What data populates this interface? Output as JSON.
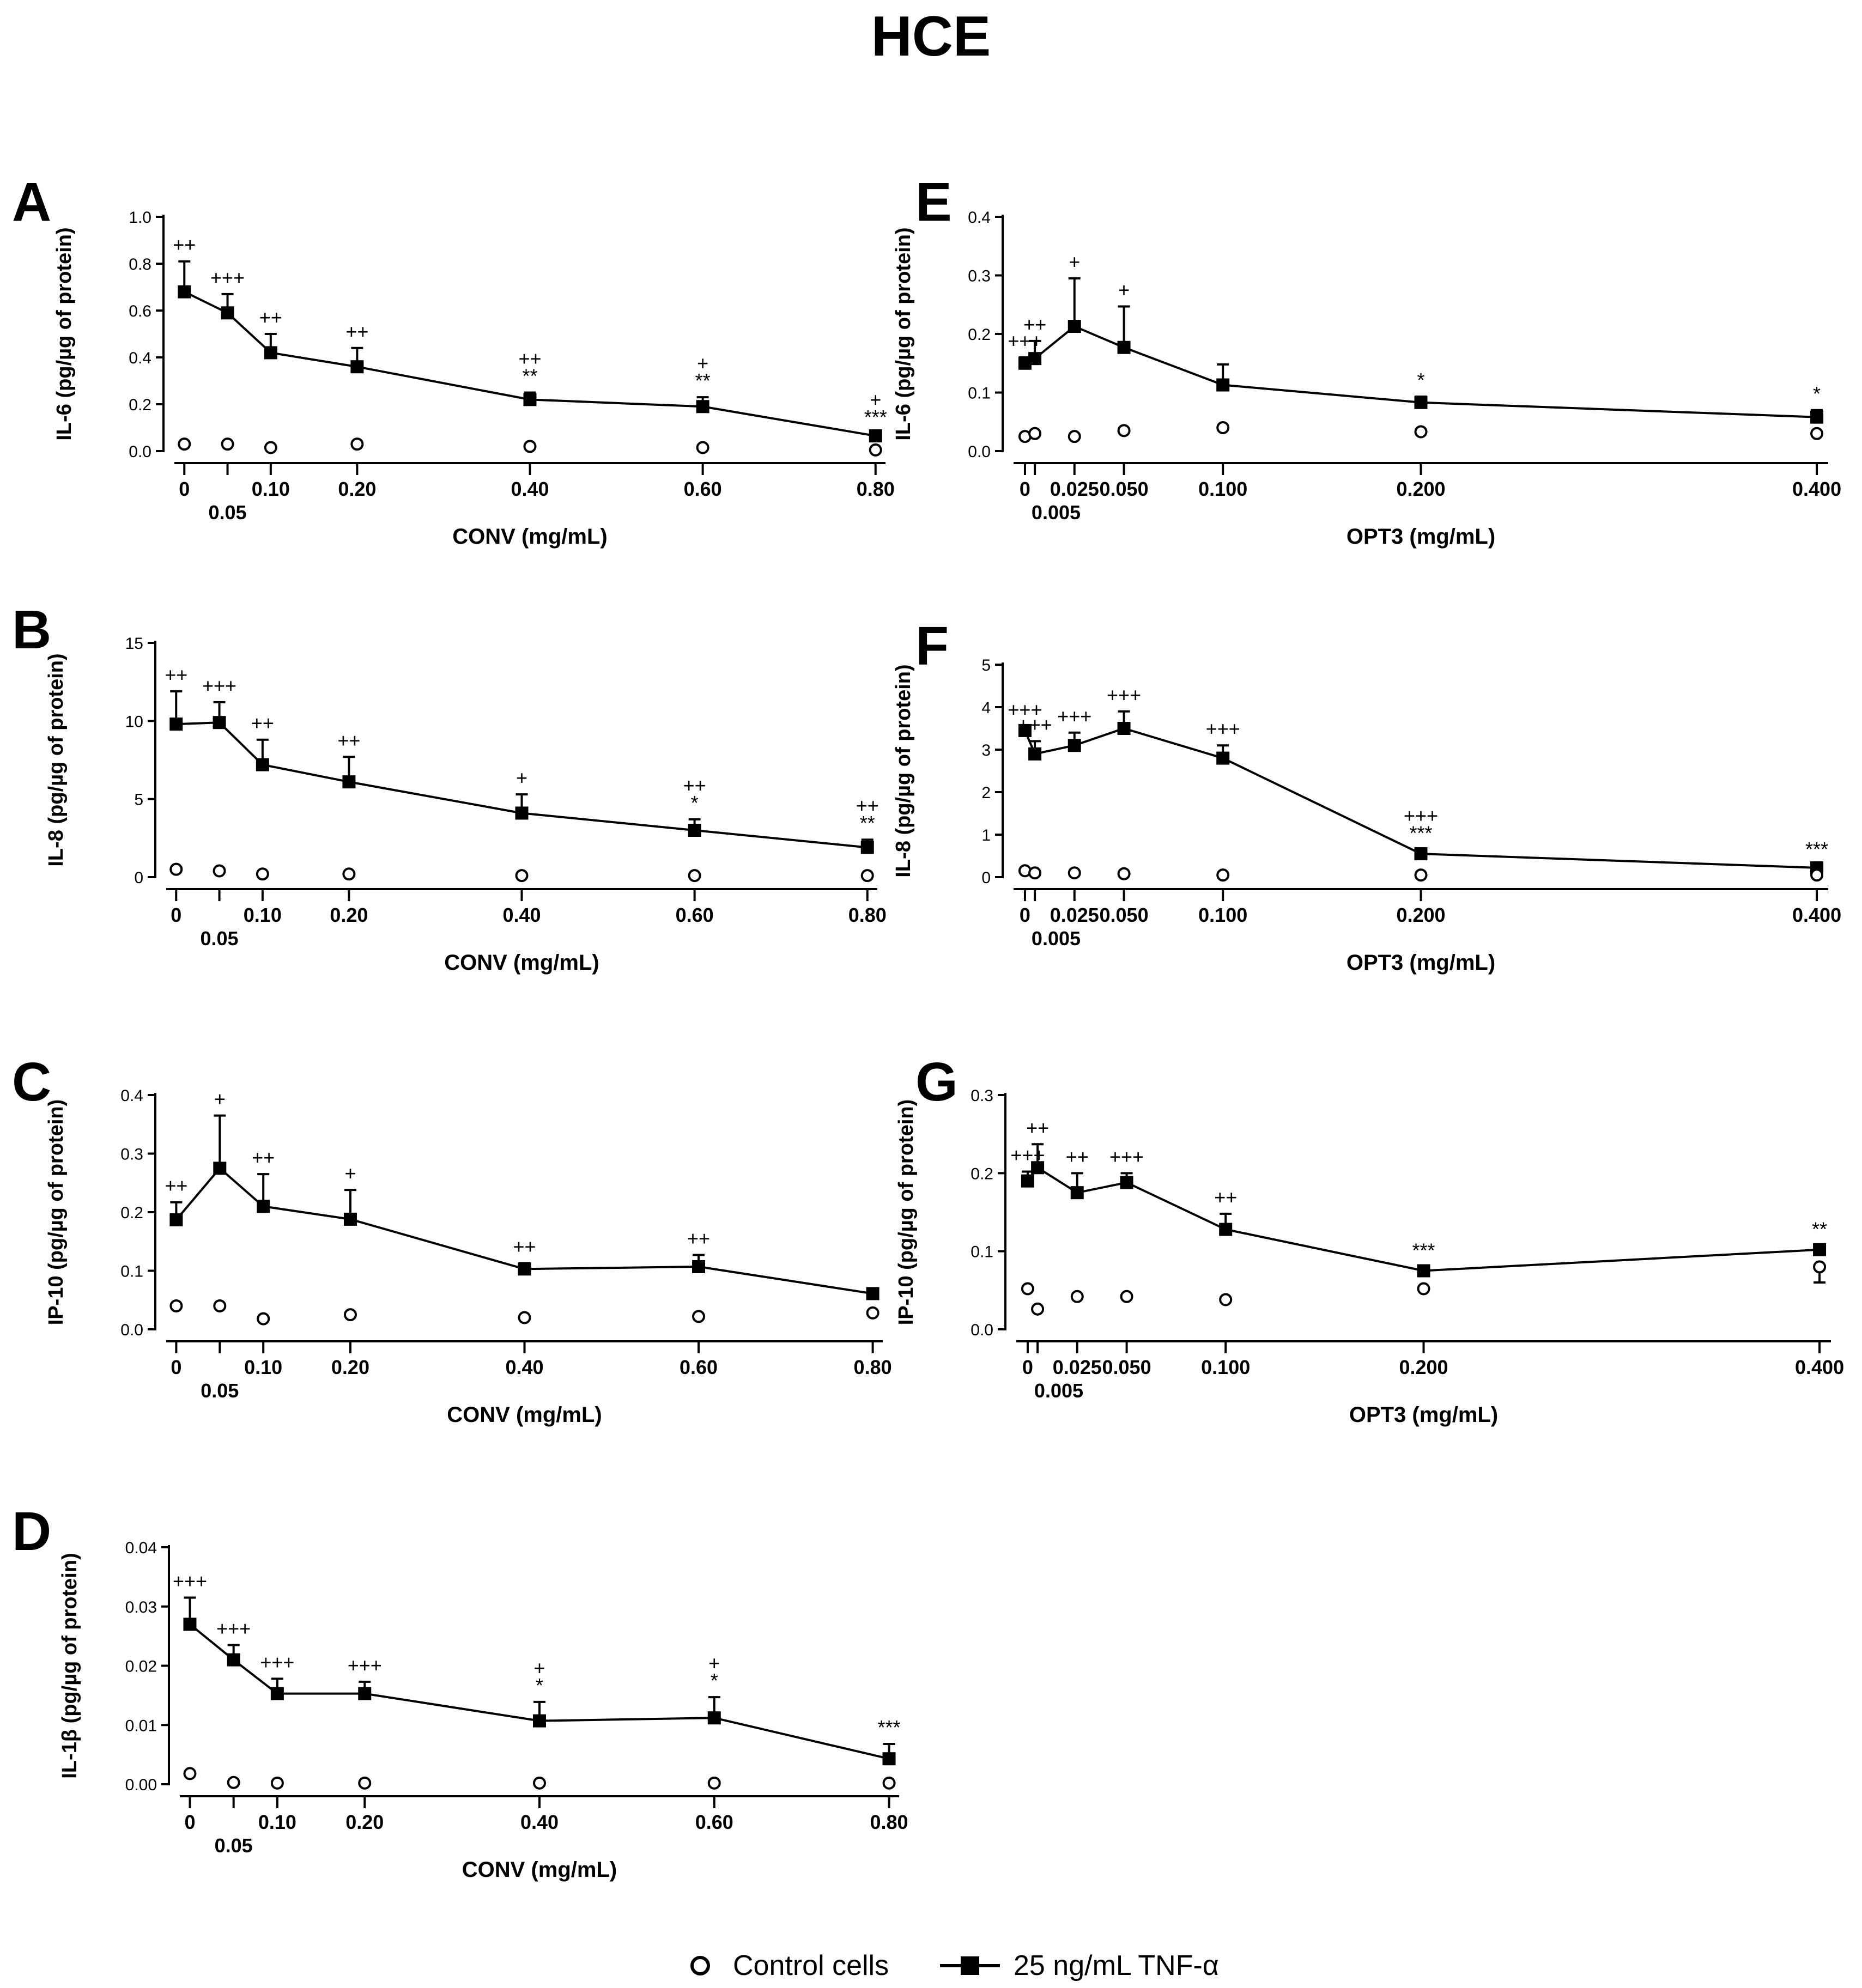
{
  "figure": {
    "title": "HCE",
    "legend": {
      "control_label": "Control cells",
      "tnf_label": "25 ng/mL TNF-α",
      "control_icon": "open-circle-icon",
      "tnf_icon": "filled-square-line-icon"
    }
  },
  "chart_data": [
    {
      "panel": "A",
      "type": "line",
      "xlabel": "CONV (mg/mL)",
      "ylabel": "IL-6 (pg/µg of protein)",
      "ylim": [
        0,
        1.0
      ],
      "y_ticks": [
        "0.0",
        "0.2",
        "0.4",
        "0.6",
        "0.8",
        "1.0"
      ],
      "x": [
        0,
        0.05,
        0.1,
        0.2,
        0.4,
        0.6,
        0.8
      ],
      "x_tick_labels": [
        "0",
        "0.05",
        "0.10",
        "0.20",
        "0.40",
        "0.60",
        "0.80"
      ],
      "series": [
        {
          "name": "Control cells",
          "values": [
            0.03,
            0.03,
            0.015,
            0.03,
            0.02,
            0.015,
            0.005
          ],
          "errors": [
            0,
            0,
            0,
            0,
            0,
            0,
            0
          ]
        },
        {
          "name": "25 ng/mL TNF-α",
          "values": [
            0.68,
            0.59,
            0.42,
            0.36,
            0.22,
            0.19,
            0.065
          ],
          "errors": [
            0.13,
            0.08,
            0.08,
            0.08,
            0.03,
            0.04,
            0.01
          ]
        }
      ],
      "annotations": [
        {
          "x": 0,
          "lines": [
            "++"
          ]
        },
        {
          "x": 0.05,
          "lines": [
            "+++"
          ]
        },
        {
          "x": 0.1,
          "lines": [
            "++"
          ]
        },
        {
          "x": 0.2,
          "lines": [
            "++"
          ]
        },
        {
          "x": 0.4,
          "lines": [
            "++",
            "**"
          ]
        },
        {
          "x": 0.6,
          "lines": [
            "+",
            "**"
          ]
        },
        {
          "x": 0.8,
          "lines": [
            "+",
            "***"
          ]
        }
      ]
    },
    {
      "panel": "B",
      "type": "line",
      "xlabel": "CONV (mg/mL)",
      "ylabel": "IL-8 (pg/µg of protein)",
      "ylim": [
        0,
        15
      ],
      "y_ticks": [
        "0",
        "5",
        "10",
        "15"
      ],
      "x": [
        0,
        0.05,
        0.1,
        0.2,
        0.4,
        0.6,
        0.8
      ],
      "x_tick_labels": [
        "0",
        "0.05",
        "0.10",
        "0.20",
        "0.40",
        "0.60",
        "0.80"
      ],
      "series": [
        {
          "name": "Control cells",
          "values": [
            0.5,
            0.4,
            0.2,
            0.2,
            0.1,
            0.1,
            0.1
          ],
          "errors": [
            0,
            0,
            0,
            0,
            0,
            0,
            0
          ]
        },
        {
          "name": "25 ng/mL TNF-α",
          "values": [
            9.8,
            9.9,
            7.2,
            6.1,
            4.1,
            3.0,
            1.9
          ],
          "errors": [
            2.1,
            1.3,
            1.6,
            1.6,
            1.2,
            0.7,
            0.5
          ]
        }
      ],
      "annotations": [
        {
          "x": 0,
          "lines": [
            "++"
          ]
        },
        {
          "x": 0.05,
          "lines": [
            "+++"
          ]
        },
        {
          "x": 0.1,
          "lines": [
            "++"
          ]
        },
        {
          "x": 0.2,
          "lines": [
            "++"
          ]
        },
        {
          "x": 0.4,
          "lines": [
            "+"
          ]
        },
        {
          "x": 0.6,
          "lines": [
            "++",
            "*"
          ]
        },
        {
          "x": 0.8,
          "lines": [
            "++",
            "**"
          ]
        }
      ]
    },
    {
      "panel": "C",
      "type": "line",
      "xlabel": "CONV (mg/mL)",
      "ylabel": "IP-10 (pg/µg of protein)",
      "ylim": [
        0,
        0.4
      ],
      "y_ticks": [
        "0.0",
        "0.1",
        "0.2",
        "0.3",
        "0.4"
      ],
      "x": [
        0,
        0.05,
        0.1,
        0.2,
        0.4,
        0.6,
        0.8
      ],
      "x_tick_labels": [
        "0",
        "0.05",
        "0.10",
        "0.20",
        "0.40",
        "0.60",
        "0.80"
      ],
      "series": [
        {
          "name": "Control cells",
          "values": [
            0.04,
            0.04,
            0.018,
            0.025,
            0.02,
            0.022,
            0.028
          ],
          "errors": [
            0,
            0,
            0,
            0,
            0,
            0,
            0
          ]
        },
        {
          "name": "25 ng/mL TNF-α",
          "values": [
            0.187,
            0.275,
            0.21,
            0.188,
            0.103,
            0.107,
            0.061
          ],
          "errors": [
            0.03,
            0.09,
            0.055,
            0.05,
            0.01,
            0.02,
            0.005
          ]
        }
      ],
      "annotations": [
        {
          "x": 0,
          "lines": [
            "++"
          ]
        },
        {
          "x": 0.05,
          "lines": [
            "+"
          ]
        },
        {
          "x": 0.1,
          "lines": [
            "++"
          ]
        },
        {
          "x": 0.2,
          "lines": [
            "+"
          ]
        },
        {
          "x": 0.4,
          "lines": [
            "++"
          ]
        },
        {
          "x": 0.6,
          "lines": [
            "++"
          ]
        }
      ]
    },
    {
      "panel": "D",
      "type": "line",
      "xlabel": "CONV (mg/mL)",
      "ylabel": "IL-1β (pg/µg of protein)",
      "ylim": [
        0,
        0.04
      ],
      "y_ticks": [
        "0.00",
        "0.01",
        "0.02",
        "0.03",
        "0.04"
      ],
      "x": [
        0,
        0.05,
        0.1,
        0.2,
        0.4,
        0.6,
        0.8
      ],
      "x_tick_labels": [
        "0",
        "0.05",
        "0.10",
        "0.20",
        "0.40",
        "0.60",
        "0.80"
      ],
      "series": [
        {
          "name": "Control cells",
          "values": [
            0.0018,
            0.0003,
            0.0002,
            0.0002,
            0.0002,
            0.0002,
            0.0002
          ],
          "errors": [
            0,
            0,
            0,
            0,
            0,
            0,
            0
          ]
        },
        {
          "name": "25 ng/mL TNF-α",
          "values": [
            0.027,
            0.021,
            0.0153,
            0.0153,
            0.0107,
            0.0112,
            0.0043
          ],
          "errors": [
            0.0045,
            0.0025,
            0.0025,
            0.002,
            0.0032,
            0.0035,
            0.0025
          ]
        }
      ],
      "annotations": [
        {
          "x": 0,
          "lines": [
            "+++"
          ]
        },
        {
          "x": 0.05,
          "lines": [
            "+++"
          ]
        },
        {
          "x": 0.1,
          "lines": [
            "+++"
          ]
        },
        {
          "x": 0.2,
          "lines": [
            "+++"
          ]
        },
        {
          "x": 0.4,
          "lines": [
            "+",
            "*"
          ]
        },
        {
          "x": 0.6,
          "lines": [
            "+",
            "*"
          ]
        },
        {
          "x": 0.8,
          "lines": [
            "***"
          ]
        }
      ]
    },
    {
      "panel": "E",
      "type": "line",
      "xlabel": "OPT3 (mg/mL)",
      "ylabel": "IL-6 (pg/µg of protein)",
      "ylim": [
        0,
        0.4
      ],
      "y_ticks": [
        "0.0",
        "0.1",
        "0.2",
        "0.3",
        "0.4"
      ],
      "x": [
        0,
        0.005,
        0.025,
        0.05,
        0.1,
        0.2,
        0.4
      ],
      "x_tick_labels": [
        "0",
        "0.005",
        "0.025",
        "0.050",
        "0.100",
        "0.200",
        "0.400"
      ],
      "series": [
        {
          "name": "Control cells",
          "values": [
            0.025,
            0.03,
            0.025,
            0.035,
            0.04,
            0.033,
            0.03
          ],
          "errors": [
            0,
            0,
            0,
            0,
            0,
            0,
            0
          ]
        },
        {
          "name": "25 ng/mL TNF-α",
          "values": [
            0.15,
            0.158,
            0.213,
            0.177,
            0.113,
            0.083,
            0.058
          ],
          "errors": [
            0.01,
            0.03,
            0.082,
            0.07,
            0.035,
            0.01,
            0.012
          ]
        }
      ],
      "annotations": [
        {
          "x": 0,
          "lines": [
            "+++"
          ]
        },
        {
          "x": 0.005,
          "lines": [
            "++"
          ]
        },
        {
          "x": 0.025,
          "lines": [
            "+"
          ]
        },
        {
          "x": 0.05,
          "lines": [
            "+"
          ]
        },
        {
          "x": 0.2,
          "lines": [
            "*"
          ]
        },
        {
          "x": 0.4,
          "lines": [
            "*"
          ]
        }
      ]
    },
    {
      "panel": "F",
      "type": "line",
      "xlabel": "OPT3 (mg/mL)",
      "ylabel": "IL-8 (pg/µg of protein)",
      "ylim": [
        0,
        5
      ],
      "y_ticks": [
        "0",
        "1",
        "2",
        "3",
        "4",
        "5"
      ],
      "x": [
        0,
        0.005,
        0.025,
        0.05,
        0.1,
        0.2,
        0.4
      ],
      "x_tick_labels": [
        "0",
        "0.005",
        "0.025",
        "0.050",
        "0.100",
        "0.200",
        "0.400"
      ],
      "series": [
        {
          "name": "Control cells",
          "values": [
            0.15,
            0.1,
            0.1,
            0.08,
            0.05,
            0.05,
            0.05
          ],
          "errors": [
            0,
            0,
            0,
            0,
            0,
            0,
            0
          ]
        },
        {
          "name": "25 ng/mL TNF-α",
          "values": [
            3.45,
            2.9,
            3.1,
            3.5,
            2.8,
            0.55,
            0.22
          ],
          "errors": [
            0.1,
            0.3,
            0.3,
            0.4,
            0.3,
            0.1,
            0.05
          ]
        }
      ],
      "annotations": [
        {
          "x": 0,
          "lines": [
            "+++"
          ]
        },
        {
          "x": 0.005,
          "lines": [
            "+++"
          ]
        },
        {
          "x": 0.025,
          "lines": [
            "+++"
          ]
        },
        {
          "x": 0.05,
          "lines": [
            "+++"
          ]
        },
        {
          "x": 0.1,
          "lines": [
            "+++"
          ]
        },
        {
          "x": 0.2,
          "lines": [
            "+++",
            "***"
          ]
        },
        {
          "x": 0.4,
          "lines": [
            "***"
          ]
        }
      ]
    },
    {
      "panel": "G",
      "type": "line",
      "xlabel": "OPT3 (mg/mL)",
      "ylabel": "IP-10 (pg/µg of protein)",
      "ylim": [
        0,
        0.3
      ],
      "y_ticks": [
        "0.0",
        "0.1",
        "0.2",
        "0.3"
      ],
      "x": [
        0,
        0.005,
        0.025,
        0.05,
        0.1,
        0.2,
        0.4
      ],
      "x_tick_labels": [
        "0",
        "0.005",
        "0.025",
        "0.050",
        "0.100",
        "0.200",
        "0.400"
      ],
      "series": [
        {
          "name": "Control cells",
          "values": [
            0.052,
            0.026,
            0.042,
            0.042,
            0.038,
            0.052,
            0.08
          ],
          "errors": [
            0,
            0,
            0,
            0,
            0,
            0,
            0.02
          ]
        },
        {
          "name": "25 ng/mL TNF-α",
          "values": [
            0.19,
            0.207,
            0.175,
            0.188,
            0.128,
            0.075,
            0.102
          ],
          "errors": [
            0.012,
            0.03,
            0.025,
            0.012,
            0.02,
            0.005,
            0.005
          ]
        }
      ],
      "annotations": [
        {
          "x": 0,
          "lines": [
            "+++"
          ]
        },
        {
          "x": 0.005,
          "lines": [
            "++"
          ]
        },
        {
          "x": 0.025,
          "lines": [
            "++"
          ]
        },
        {
          "x": 0.05,
          "lines": [
            "+++"
          ]
        },
        {
          "x": 0.1,
          "lines": [
            "++"
          ]
        },
        {
          "x": 0.2,
          "lines": [
            "***"
          ]
        },
        {
          "x": 0.4,
          "lines": [
            "**"
          ]
        }
      ]
    }
  ]
}
